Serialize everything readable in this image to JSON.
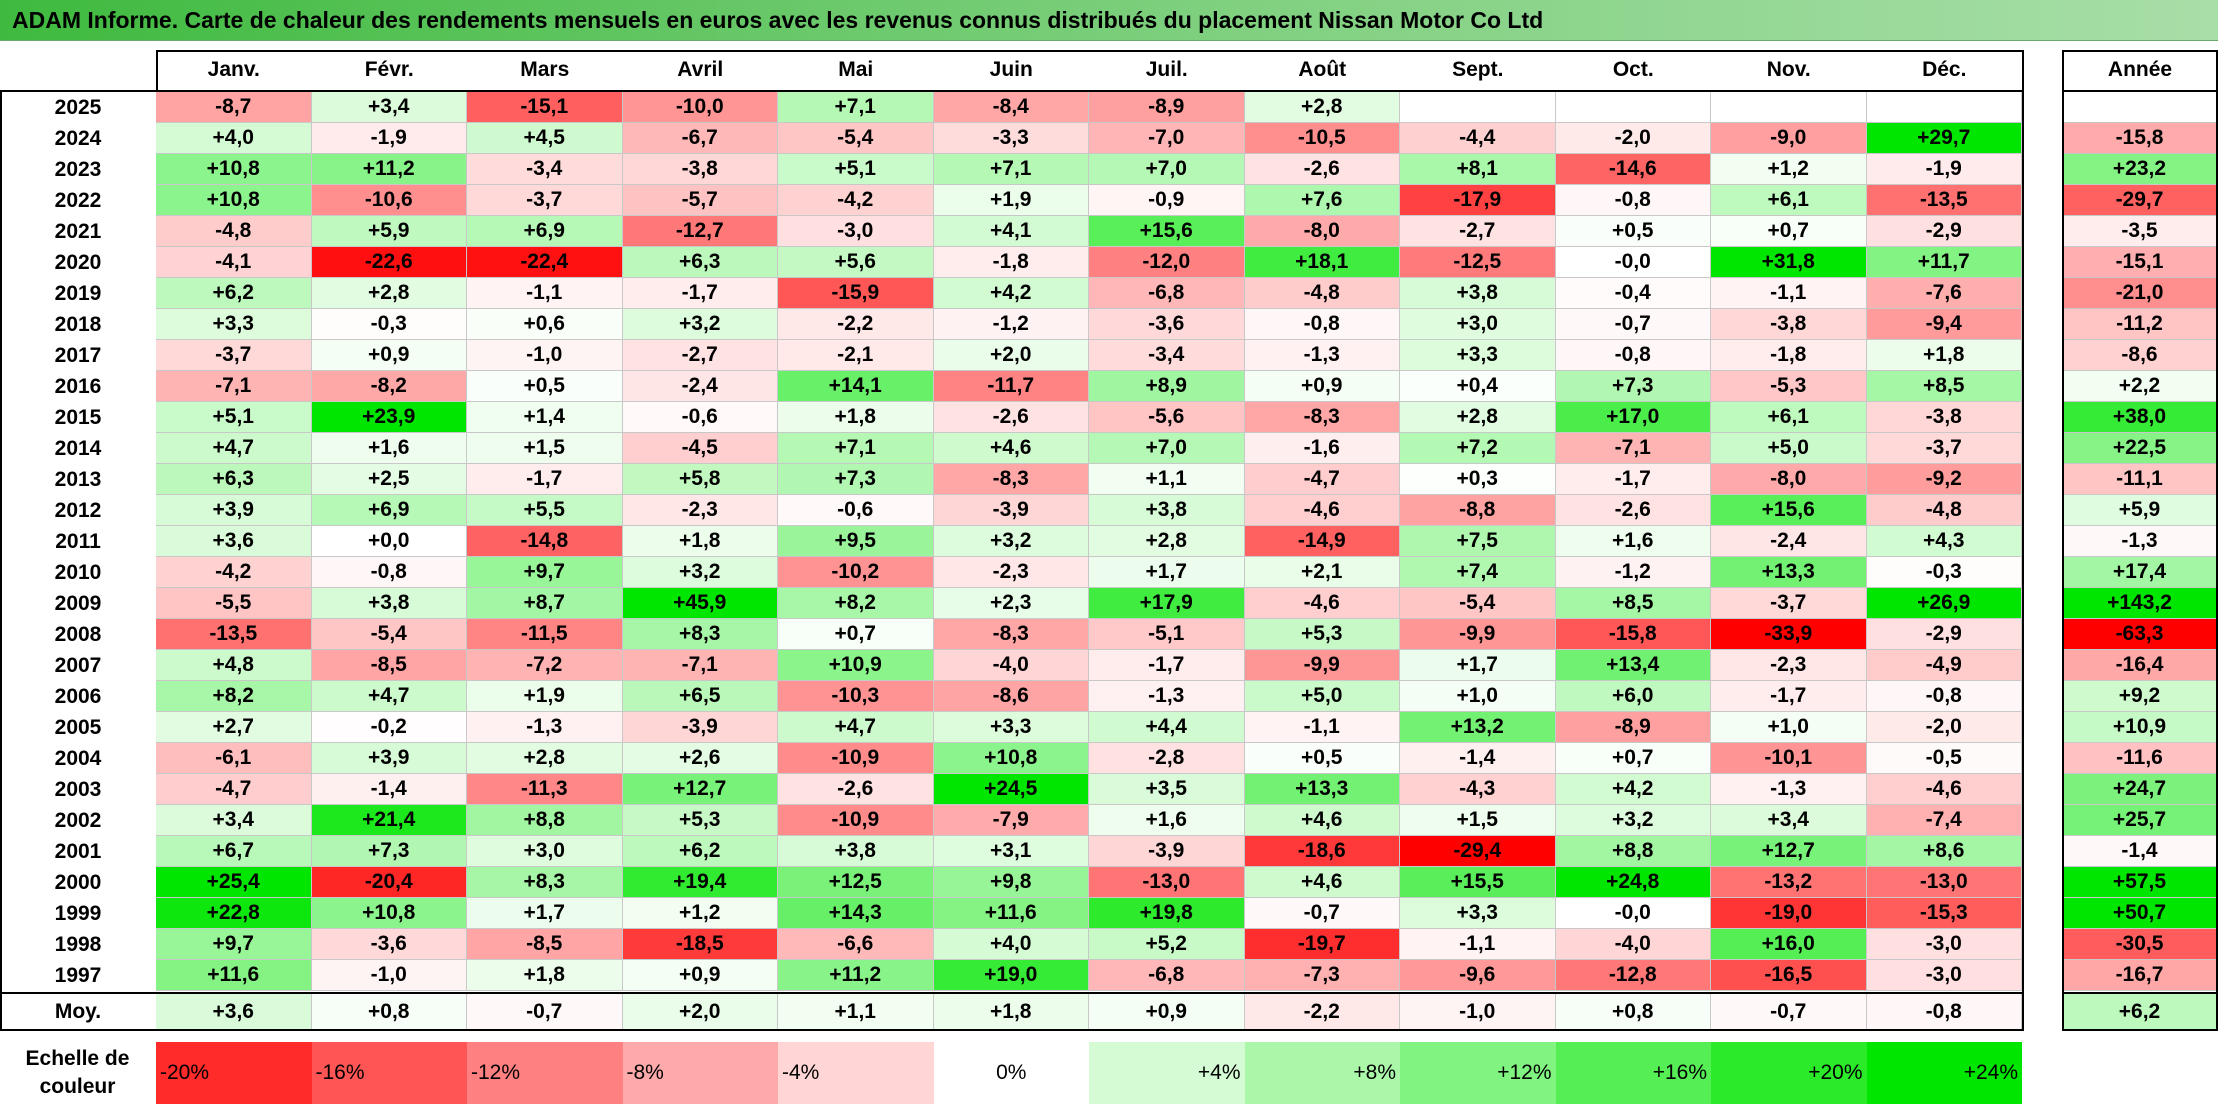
{
  "title": "ADAM Informe. Carte de chaleur des rendements mensuels en euros avec les revenus connus distribués du placement Nissan Motor Co Ltd",
  "colors": {
    "title_bar": "#4cc24c",
    "pos_max": "#00e600",
    "neg_max": "#ff0000",
    "zero": "#ffffff"
  },
  "months": [
    "Janv.",
    "Févr.",
    "Mars",
    "Avril",
    "Mai",
    "Juin",
    "Juil.",
    "Août",
    "Sept.",
    "Oct.",
    "Nov.",
    "Déc."
  ],
  "year_header": "Année",
  "avg_label": "Moy.",
  "scale_label": [
    "Echelle de",
    "couleur"
  ],
  "chart_data": {
    "type": "heatmap",
    "title": "ADAM Informe. Carte de chaleur des rendements mensuels en euros avec les revenus connus distribués du placement Nissan Motor Co Ltd",
    "rows": [
      {
        "year": "2025",
        "values": [
          "-8,7",
          "+3,4",
          "-15,1",
          "-10,0",
          "+7,1",
          "-8,4",
          "-8,9",
          "+2,8",
          "",
          "",
          "",
          ""
        ],
        "annual": ""
      },
      {
        "year": "2024",
        "values": [
          "+4,0",
          "-1,9",
          "+4,5",
          "-6,7",
          "-5,4",
          "-3,3",
          "-7,0",
          "-10,5",
          "-4,4",
          "-2,0",
          "-9,0",
          "+29,7"
        ],
        "annual": "-15,8"
      },
      {
        "year": "2023",
        "values": [
          "+10,8",
          "+11,2",
          "-3,4",
          "-3,8",
          "+5,1",
          "+7,1",
          "+7,0",
          "-2,6",
          "+8,1",
          "-14,6",
          "+1,2",
          "-1,9"
        ],
        "annual": "+23,2"
      },
      {
        "year": "2022",
        "values": [
          "+10,8",
          "-10,6",
          "-3,7",
          "-5,7",
          "-4,2",
          "+1,9",
          "-0,9",
          "+7,6",
          "-17,9",
          "-0,8",
          "+6,1",
          "-13,5"
        ],
        "annual": "-29,7"
      },
      {
        "year": "2021",
        "values": [
          "-4,8",
          "+5,9",
          "+6,9",
          "-12,7",
          "-3,0",
          "+4,1",
          "+15,6",
          "-8,0",
          "-2,7",
          "+0,5",
          "+0,7",
          "-2,9"
        ],
        "annual": "-3,5"
      },
      {
        "year": "2020",
        "values": [
          "-4,1",
          "-22,6",
          "-22,4",
          "+6,3",
          "+5,6",
          "-1,8",
          "-12,0",
          "+18,1",
          "-12,5",
          "-0,0",
          "+31,8",
          "+11,7"
        ],
        "annual": "-15,1"
      },
      {
        "year": "2019",
        "values": [
          "+6,2",
          "+2,8",
          "-1,1",
          "-1,7",
          "-15,9",
          "+4,2",
          "-6,8",
          "-4,8",
          "+3,8",
          "-0,4",
          "-1,1",
          "-7,6"
        ],
        "annual": "-21,0"
      },
      {
        "year": "2018",
        "values": [
          "+3,3",
          "-0,3",
          "+0,6",
          "+3,2",
          "-2,2",
          "-1,2",
          "-3,6",
          "-0,8",
          "+3,0",
          "-0,7",
          "-3,8",
          "-9,4"
        ],
        "annual": "-11,2"
      },
      {
        "year": "2017",
        "values": [
          "-3,7",
          "+0,9",
          "-1,0",
          "-2,7",
          "-2,1",
          "+2,0",
          "-3,4",
          "-1,3",
          "+3,3",
          "-0,8",
          "-1,8",
          "+1,8"
        ],
        "annual": "-8,6"
      },
      {
        "year": "2016",
        "values": [
          "-7,1",
          "-8,2",
          "+0,5",
          "-2,4",
          "+14,1",
          "-11,7",
          "+8,9",
          "+0,9",
          "+0,4",
          "+7,3",
          "-5,3",
          "+8,5"
        ],
        "annual": "+2,2"
      },
      {
        "year": "2015",
        "values": [
          "+5,1",
          "+23,9",
          "+1,4",
          "-0,6",
          "+1,8",
          "-2,6",
          "-5,6",
          "-8,3",
          "+2,8",
          "+17,0",
          "+6,1",
          "-3,8"
        ],
        "annual": "+38,0"
      },
      {
        "year": "2014",
        "values": [
          "+4,7",
          "+1,6",
          "+1,5",
          "-4,5",
          "+7,1",
          "+4,6",
          "+7,0",
          "-1,6",
          "+7,2",
          "-7,1",
          "+5,0",
          "-3,7"
        ],
        "annual": "+22,5"
      },
      {
        "year": "2013",
        "values": [
          "+6,3",
          "+2,5",
          "-1,7",
          "+5,8",
          "+7,3",
          "-8,3",
          "+1,1",
          "-4,7",
          "+0,3",
          "-1,7",
          "-8,0",
          "-9,2"
        ],
        "annual": "-11,1"
      },
      {
        "year": "2012",
        "values": [
          "+3,9",
          "+6,9",
          "+5,5",
          "-2,3",
          "-0,6",
          "-3,9",
          "+3,8",
          "-4,6",
          "-8,8",
          "-2,6",
          "+15,6",
          "-4,8"
        ],
        "annual": "+5,9"
      },
      {
        "year": "2011",
        "values": [
          "+3,6",
          "+0,0",
          "-14,8",
          "+1,8",
          "+9,5",
          "+3,2",
          "+2,8",
          "-14,9",
          "+7,5",
          "+1,6",
          "-2,4",
          "+4,3"
        ],
        "annual": "-1,3"
      },
      {
        "year": "2010",
        "values": [
          "-4,2",
          "-0,8",
          "+9,7",
          "+3,2",
          "-10,2",
          "-2,3",
          "+1,7",
          "+2,1",
          "+7,4",
          "-1,2",
          "+13,3",
          "-0,3"
        ],
        "annual": "+17,4"
      },
      {
        "year": "2009",
        "values": [
          "-5,5",
          "+3,8",
          "+8,7",
          "+45,9",
          "+8,2",
          "+2,3",
          "+17,9",
          "-4,6",
          "-5,4",
          "+8,5",
          "-3,7",
          "+26,9"
        ],
        "annual": "+143,2"
      },
      {
        "year": "2008",
        "values": [
          "-13,5",
          "-5,4",
          "-11,5",
          "+8,3",
          "+0,7",
          "-8,3",
          "-5,1",
          "+5,3",
          "-9,9",
          "-15,8",
          "-33,9",
          "-2,9"
        ],
        "annual": "-63,3"
      },
      {
        "year": "2007",
        "values": [
          "+4,8",
          "-8,5",
          "-7,2",
          "-7,1",
          "+10,9",
          "-4,0",
          "-1,7",
          "-9,9",
          "+1,7",
          "+13,4",
          "-2,3",
          "-4,9"
        ],
        "annual": "-16,4"
      },
      {
        "year": "2006",
        "values": [
          "+8,2",
          "+4,7",
          "+1,9",
          "+6,5",
          "-10,3",
          "-8,6",
          "-1,3",
          "+5,0",
          "+1,0",
          "+6,0",
          "-1,7",
          "-0,8"
        ],
        "annual": "+9,2"
      },
      {
        "year": "2005",
        "values": [
          "+2,7",
          "-0,2",
          "-1,3",
          "-3,9",
          "+4,7",
          "+3,3",
          "+4,4",
          "-1,1",
          "+13,2",
          "-8,9",
          "+1,0",
          "-2,0"
        ],
        "annual": "+10,9"
      },
      {
        "year": "2004",
        "values": [
          "-6,1",
          "+3,9",
          "+2,8",
          "+2,6",
          "-10,9",
          "+10,8",
          "-2,8",
          "+0,5",
          "-1,4",
          "+0,7",
          "-10,1",
          "-0,5"
        ],
        "annual": "-11,6"
      },
      {
        "year": "2003",
        "values": [
          "-4,7",
          "-1,4",
          "-11,3",
          "+12,7",
          "-2,6",
          "+24,5",
          "+3,5",
          "+13,3",
          "-4,3",
          "+4,2",
          "-1,3",
          "-4,6"
        ],
        "annual": "+24,7"
      },
      {
        "year": "2002",
        "values": [
          "+3,4",
          "+21,4",
          "+8,8",
          "+5,3",
          "-10,9",
          "-7,9",
          "+1,6",
          "+4,6",
          "+1,5",
          "+3,2",
          "+3,4",
          "-7,4"
        ],
        "annual": "+25,7"
      },
      {
        "year": "2001",
        "values": [
          "+6,7",
          "+7,3",
          "+3,0",
          "+6,2",
          "+3,8",
          "+3,1",
          "-3,9",
          "-18,6",
          "-29,4",
          "+8,8",
          "+12,7",
          "+8,6"
        ],
        "annual": "-1,4"
      },
      {
        "year": "2000",
        "values": [
          "+25,4",
          "-20,4",
          "+8,3",
          "+19,4",
          "+12,5",
          "+9,8",
          "-13,0",
          "+4,6",
          "+15,5",
          "+24,8",
          "-13,2",
          "-13,0"
        ],
        "annual": "+57,5"
      },
      {
        "year": "1999",
        "values": [
          "+22,8",
          "+10,8",
          "+1,7",
          "+1,2",
          "+14,3",
          "+11,6",
          "+19,8",
          "-0,7",
          "+3,3",
          "-0,0",
          "-19,0",
          "-15,3"
        ],
        "annual": "+50,7"
      },
      {
        "year": "1998",
        "values": [
          "+9,7",
          "-3,6",
          "-8,5",
          "-18,5",
          "-6,6",
          "+4,0",
          "+5,2",
          "-19,7",
          "-1,1",
          "-4,0",
          "+16,0",
          "-3,0"
        ],
        "annual": "-30,5"
      },
      {
        "year": "1997",
        "values": [
          "+11,6",
          "-1,0",
          "+1,8",
          "+0,9",
          "+11,2",
          "+19,0",
          "-6,8",
          "-7,3",
          "-9,6",
          "-12,8",
          "-16,5",
          "-3,0"
        ],
        "annual": "-16,7"
      }
    ],
    "averages": {
      "values": [
        "+3,6",
        "+0,8",
        "-0,7",
        "+2,0",
        "+1,1",
        "+1,8",
        "+0,9",
        "-2,2",
        "-1,0",
        "+0,8",
        "-0,7",
        "-0,8"
      ],
      "annual": "+6,2"
    },
    "color_scale": [
      "-20%",
      "-16%",
      "-12%",
      "-8%",
      "-4%",
      "0%",
      "+4%",
      "+8%",
      "+12%",
      "+16%",
      "+20%",
      "+24%"
    ],
    "color_range": [
      -24,
      24
    ]
  }
}
